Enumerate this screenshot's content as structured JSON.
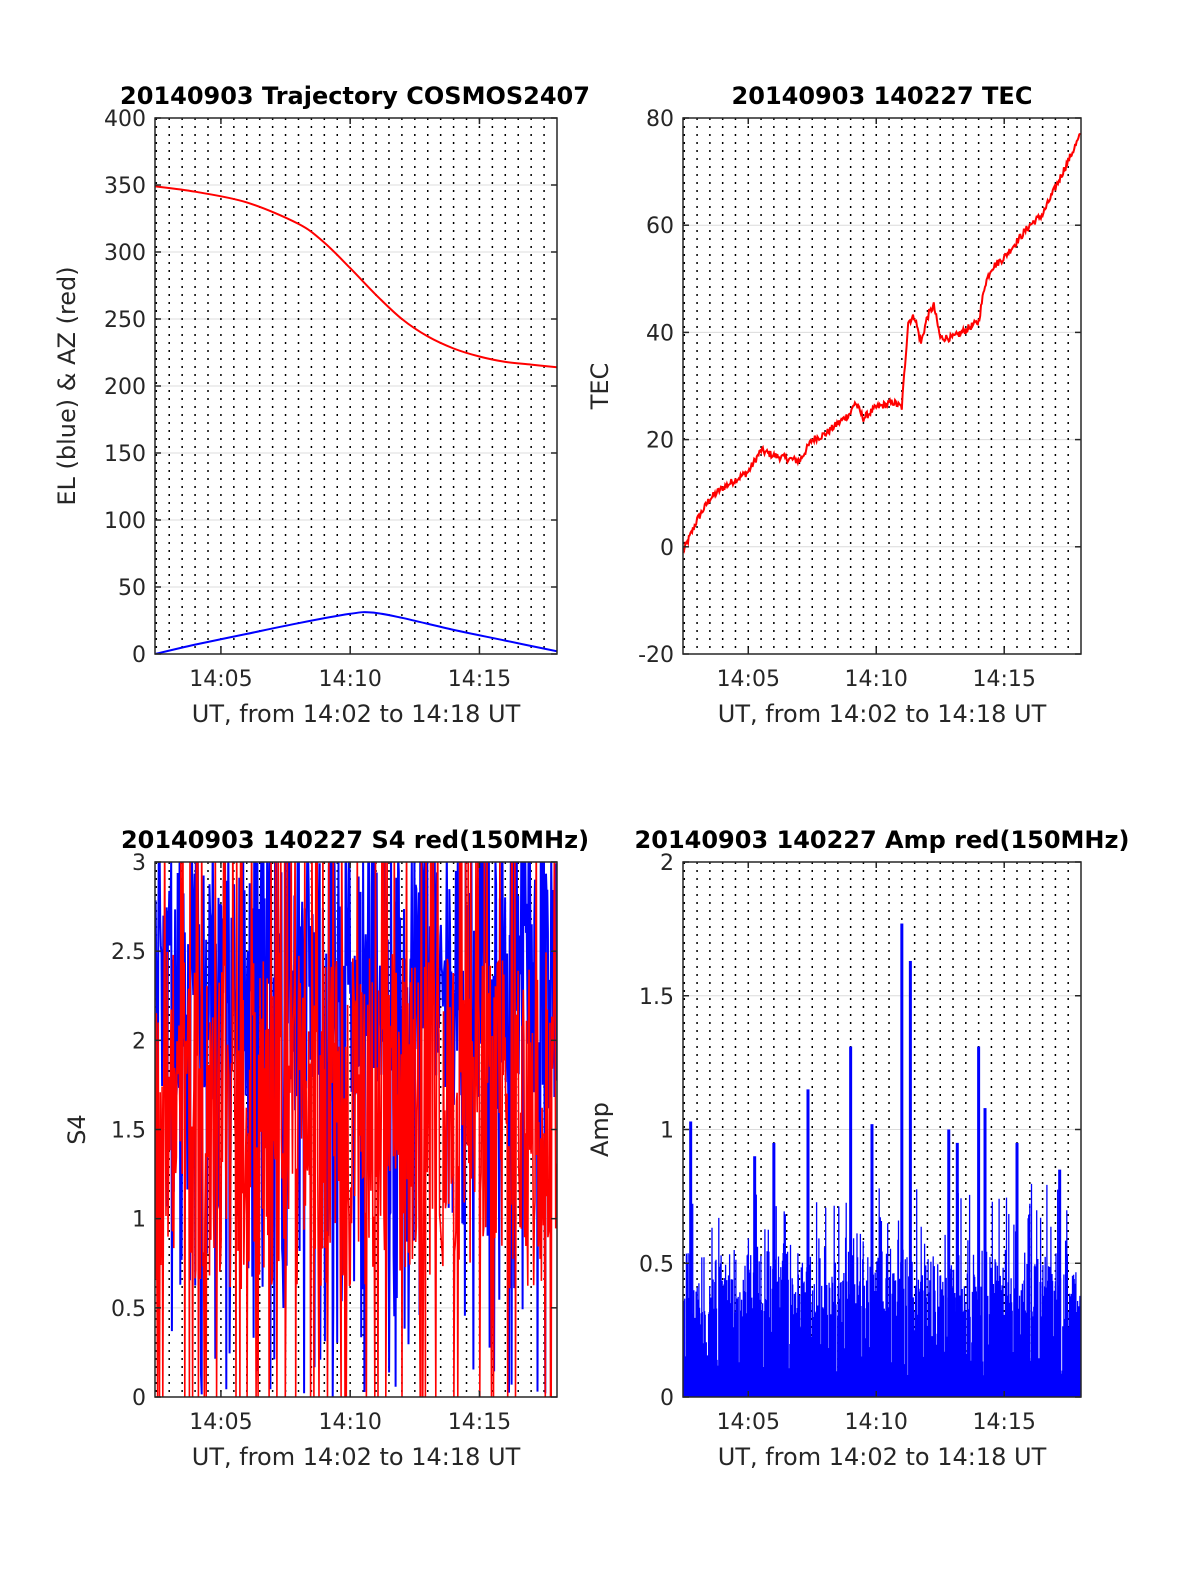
{
  "colors": {
    "red": "#ff0000",
    "blue": "#0000ff",
    "grid": "#dcdcdc",
    "axes": "#262626"
  },
  "chart_data": [
    {
      "type": "line",
      "title": "20140903 Trajectory COSMOS2407",
      "xlabel": "UT, from 14:02 to 14:18 UT",
      "ylabel": "EL (blue) & AZ (red)",
      "xlim": [
        "14:02:27",
        "14:18:00"
      ],
      "ylim": [
        0,
        400
      ],
      "xticks": [
        "14:05",
        "14:10",
        "14:15"
      ],
      "yticks": [
        "0",
        "50",
        "100",
        "150",
        "200",
        "250",
        "300",
        "350",
        "400"
      ],
      "grid": true,
      "series": [
        {
          "color": "red",
          "x": [
            "14:02:27",
            "14:04",
            "14:06",
            "14:08",
            "14:09",
            "14:10",
            "14:11",
            "14:12",
            "14:13",
            "14:14",
            "14:15",
            "14:16",
            "14:17",
            "14:18"
          ],
          "values": [
            349,
            345,
            337,
            321,
            307,
            288,
            268,
            250,
            237,
            228,
            222,
            218,
            216,
            214
          ]
        },
        {
          "color": "blue",
          "x": [
            "14:02:27",
            "14:04",
            "14:06",
            "14:08",
            "14:10",
            "14:10:50",
            "14:12",
            "14:14",
            "14:16",
            "14:18"
          ],
          "values": [
            0,
            7,
            15,
            23,
            30,
            31,
            27,
            18,
            10,
            2
          ]
        }
      ]
    },
    {
      "type": "line",
      "title": "20140903 140227 TEC",
      "xlabel": "UT, from 14:02 to 14:18 UT",
      "ylabel": "TEC",
      "xlim": [
        "14:02:27",
        "14:18:00"
      ],
      "ylim": [
        -20,
        80
      ],
      "xticks": [
        "14:05",
        "14:10",
        "14:15"
      ],
      "yticks": [
        "-20",
        "0",
        "20",
        "40",
        "60",
        "80"
      ],
      "grid": true,
      "series": [
        {
          "color": "red",
          "x": [
            "14:02:27",
            "14:03",
            "14:03:30",
            "14:04",
            "14:05",
            "14:05:30",
            "14:06",
            "14:07",
            "14:07:30",
            "14:08",
            "14:08:30",
            "14:09",
            "14:09:10",
            "14:09:30",
            "14:10",
            "14:10:40",
            "14:11",
            "14:11:15",
            "14:11:30",
            "14:11:45",
            "14:12",
            "14:12:15",
            "14:12:30",
            "14:13",
            "14:14",
            "14:14:15",
            "14:14:30",
            "14:15",
            "14:16",
            "14:16:30",
            "14:17",
            "14:18"
          ],
          "values": [
            -1,
            5,
            9,
            11,
            14,
            18,
            17,
            16,
            20,
            21,
            23,
            25,
            27,
            24,
            26,
            27,
            26,
            42,
            43,
            38,
            43,
            45,
            39,
            39,
            42,
            49,
            52,
            54,
            60,
            62,
            67,
            77
          ]
        }
      ]
    },
    {
      "type": "line",
      "title": "20140903 140227 S4 red(150MHz)",
      "xlabel": "UT, from 14:02 to 14:18 UT",
      "ylabel": "S4",
      "xlim": [
        "14:02:27",
        "14:18:00"
      ],
      "ylim": [
        0,
        3
      ],
      "xticks": [
        "14:05",
        "14:10",
        "14:15"
      ],
      "yticks": [
        "0",
        "0.5",
        "1",
        "1.5",
        "2",
        "2.5",
        "3"
      ],
      "grid": true,
      "series": [
        {
          "color": "blue",
          "note": "dense noisy signal saturating near 3, dipping to ~1-2, occasional drops to 0"
        },
        {
          "color": "red",
          "note": "dense noisy signal between ~0 and 3, mostly around 1-2"
        }
      ]
    },
    {
      "type": "bar",
      "title": "20140903 140227 Amp red(150MHz)",
      "xlabel": "UT, from 14:02 to 14:18 UT",
      "ylabel": "Amp",
      "xlim": [
        "14:02:27",
        "14:18:00"
      ],
      "ylim": [
        0,
        2
      ],
      "xticks": [
        "14:05",
        "14:10",
        "14:15"
      ],
      "yticks": [
        "0",
        "0.5",
        "1",
        "1.5",
        "2"
      ],
      "grid": true,
      "series": [
        {
          "color": "blue",
          "peaks_x": [
            "14:02:45",
            "14:05:15",
            "14:06",
            "14:07:20",
            "14:09",
            "14:09:50",
            "14:11",
            "14:11:20",
            "14:12:50",
            "14:13:10",
            "14:14",
            "14:14:15",
            "14:15:30",
            "14:17:10"
          ],
          "peaks": [
            1.03,
            0.9,
            0.95,
            1.15,
            1.31,
            1.02,
            1.77,
            1.63,
            1.0,
            0.95,
            1.31,
            1.08,
            0.95,
            0.85
          ],
          "typical_level": 0.5
        }
      ]
    }
  ]
}
